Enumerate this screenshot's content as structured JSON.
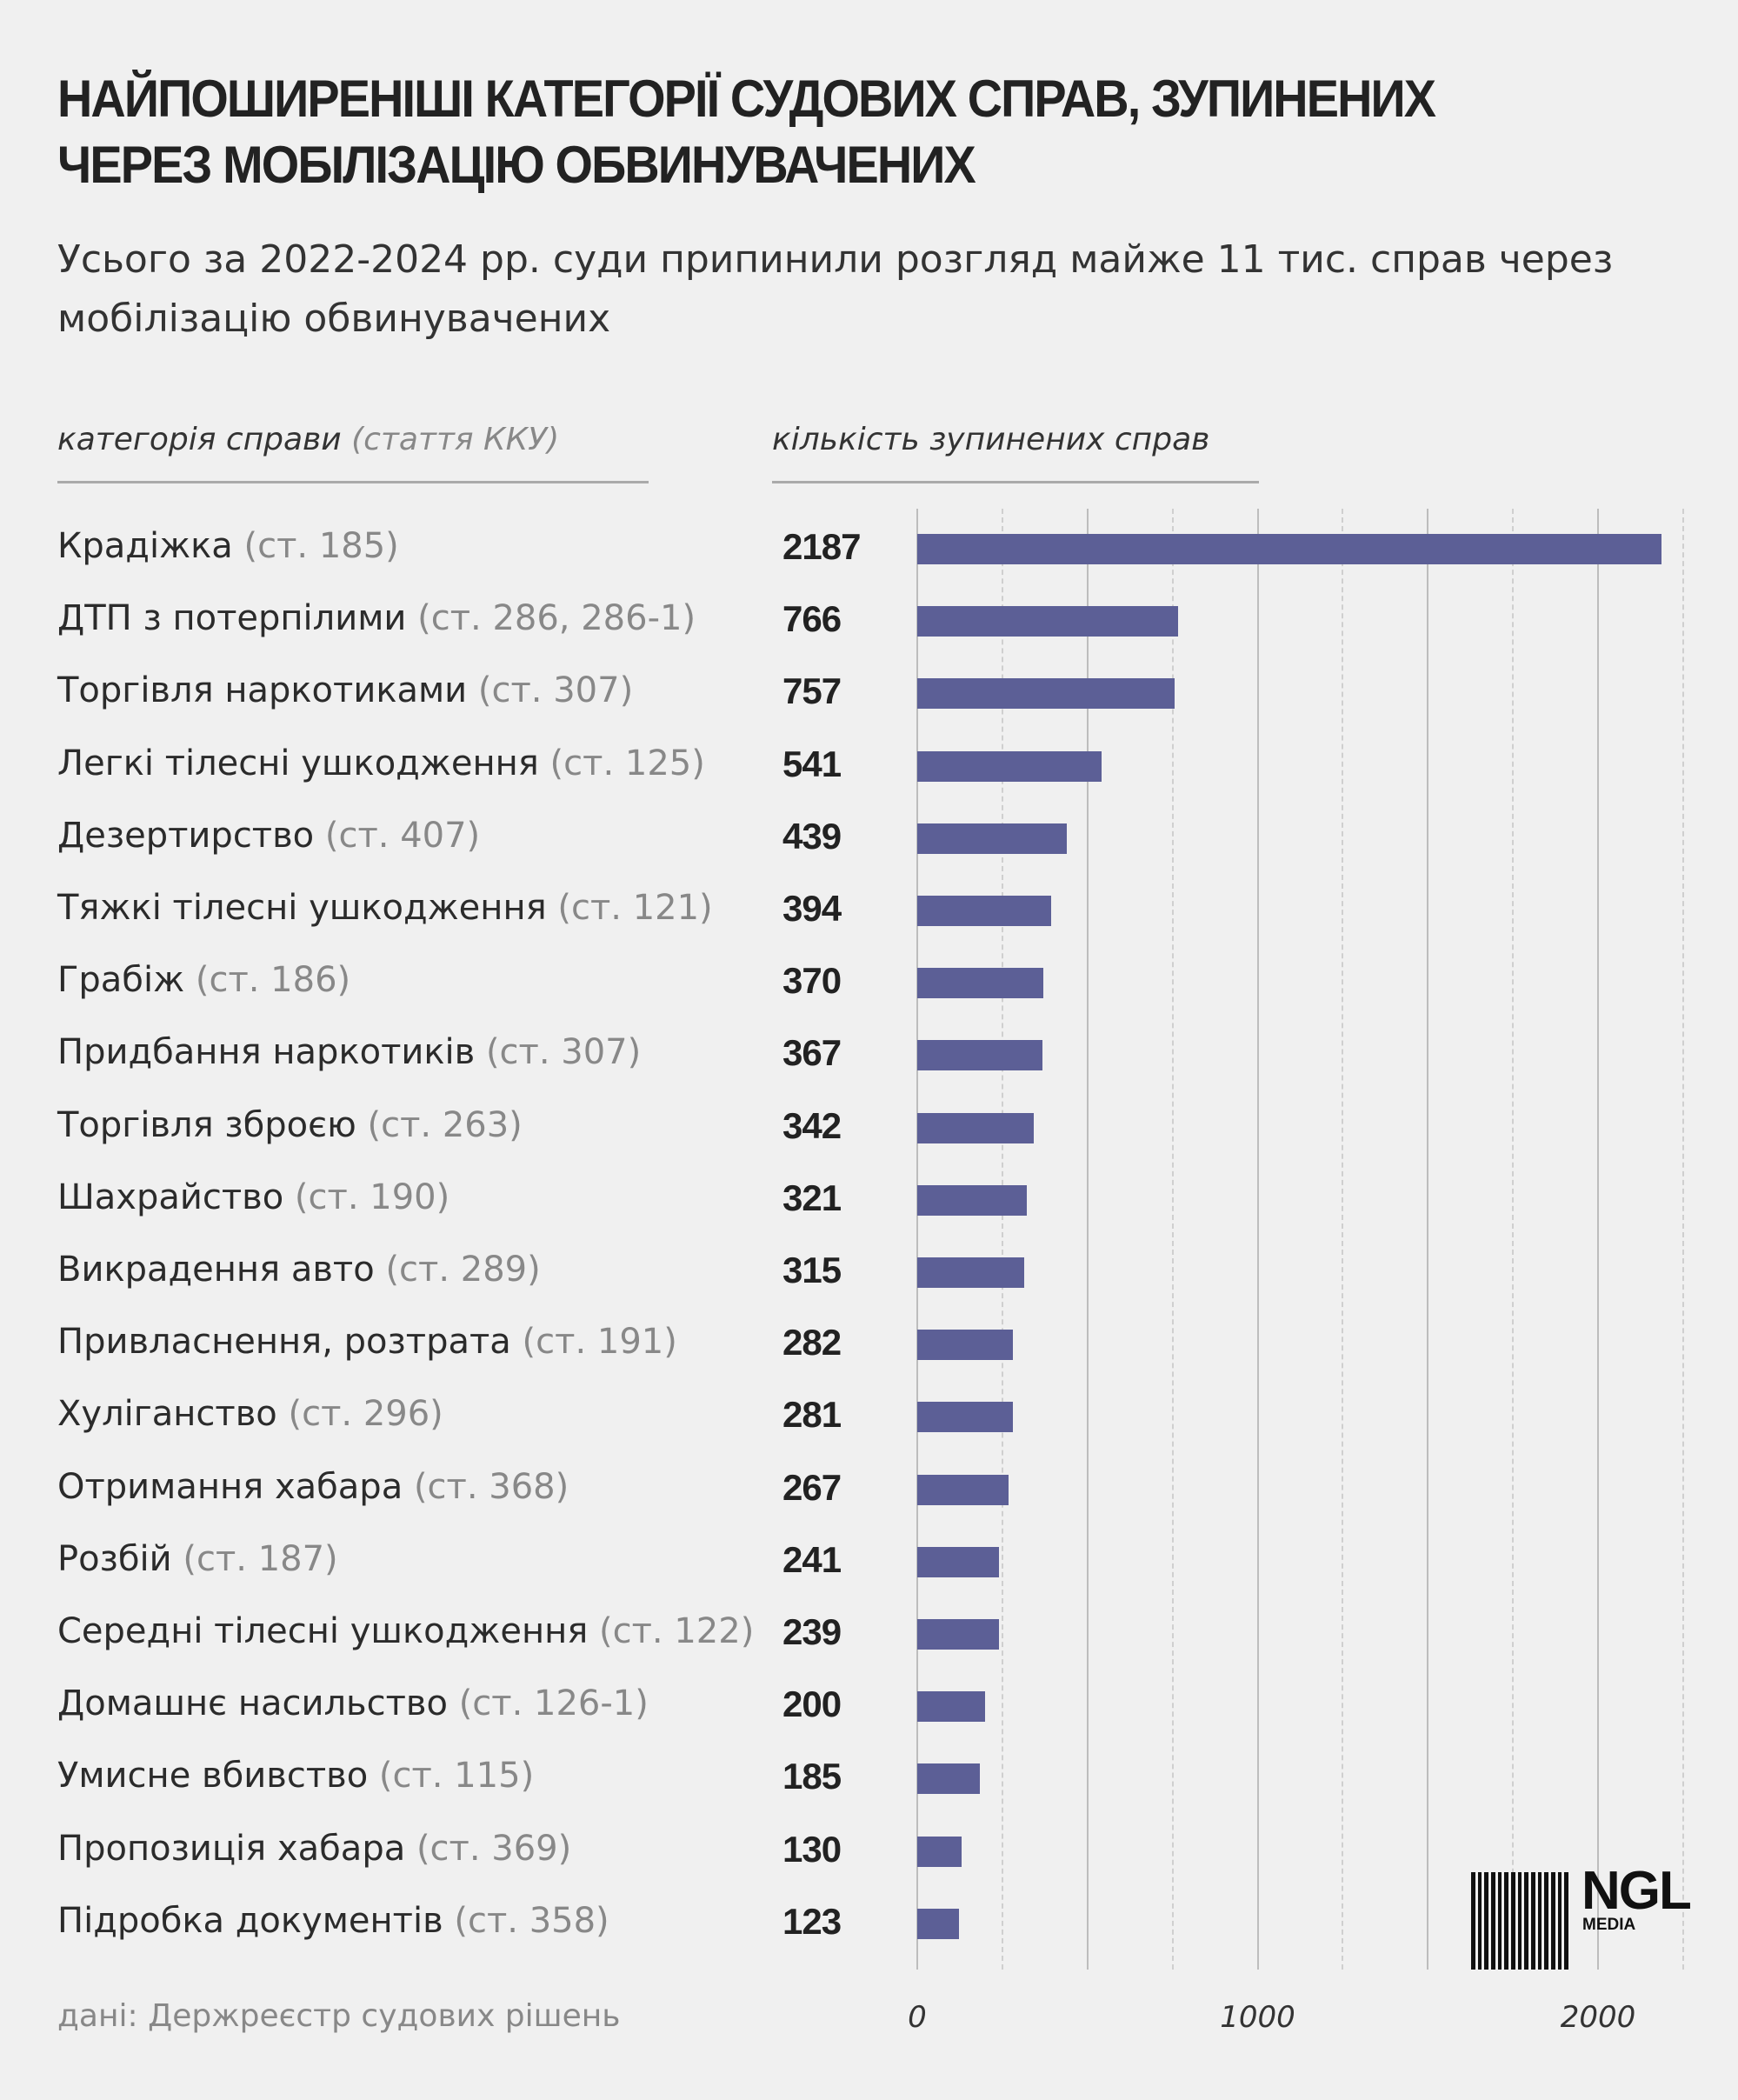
{
  "title": "НАЙПОШИРЕНІШІ КАТЕГОРІЇ СУДОВИХ СПРАВ, ЗУПИНЕНИХ ЧЕРЕЗ МОБІЛІЗАЦІЮ ОБВИНУВАЧЕНИХ",
  "subtitle": "Усього за 2022-2024 рр. суди припинили розгляд майже 11 тис. справ через мобілізацію обвинувачених",
  "headers": {
    "category": "категорія справи",
    "category_note": "(стаття ККУ)",
    "count": "кількість зупинених справ"
  },
  "source": "дані: Держреєстр судових рішень",
  "logo": {
    "name": "NGL",
    "sub": "MEDIA"
  },
  "colors": {
    "bar": "#5c5f96",
    "background": "#f0f0f0"
  },
  "chart_data": {
    "type": "bar",
    "orientation": "horizontal",
    "title": "НАЙПОШИРЕНІШІ КАТЕГОРІЇ СУДОВИХ СПРАВ, ЗУПИНЕНИХ ЧЕРЕЗ МОБІЛІЗАЦІЮ ОБВИНУВАЧЕНИХ",
    "xlim": [
      0,
      2250
    ],
    "ticks": [
      "0",
      "1000",
      "2000"
    ],
    "tick_values": [
      0,
      1000,
      2000
    ],
    "grid": true,
    "categories": [
      {
        "name": "Крадіжка",
        "article": "(ст. 185)"
      },
      {
        "name": "ДТП з потерпілими",
        "article": "(ст. 286, 286-1)"
      },
      {
        "name": "Торгівля наркотиками",
        "article": "(ст. 307)"
      },
      {
        "name": "Легкі тілесні ушкодження",
        "article": "(ст. 125)"
      },
      {
        "name": "Дезертирство",
        "article": "(ст. 407)"
      },
      {
        "name": "Тяжкі тілесні ушкодження",
        "article": "(ст. 121)"
      },
      {
        "name": "Грабіж",
        "article": "(ст. 186)"
      },
      {
        "name": "Придбання наркотиків",
        "article": "(ст. 307)"
      },
      {
        "name": "Торгівля зброєю",
        "article": "(ст. 263)"
      },
      {
        "name": "Шахрайство",
        "article": "(ст. 190)"
      },
      {
        "name": "Викрадення авто",
        "article": "(ст. 289)"
      },
      {
        "name": "Привласнення, розтрата",
        "article": "(ст. 191)"
      },
      {
        "name": "Хуліганство",
        "article": "(ст. 296)"
      },
      {
        "name": "Отримання хабара",
        "article": "(ст. 368)"
      },
      {
        "name": "Розбій",
        "article": "(ст. 187)"
      },
      {
        "name": "Середні тілесні ушкодження",
        "article": "(ст. 122)"
      },
      {
        "name": "Домашнє насильство",
        "article": "(ст. 126-1)"
      },
      {
        "name": "Умисне вбивство",
        "article": "(ст. 115)"
      },
      {
        "name": "Пропозиція хабара",
        "article": "(ст. 369)"
      },
      {
        "name": "Підробка документів",
        "article": "(ст. 358)"
      }
    ],
    "values": [
      2187,
      766,
      757,
      541,
      439,
      394,
      370,
      367,
      342,
      321,
      315,
      282,
      281,
      267,
      241,
      239,
      200,
      185,
      130,
      123
    ]
  }
}
